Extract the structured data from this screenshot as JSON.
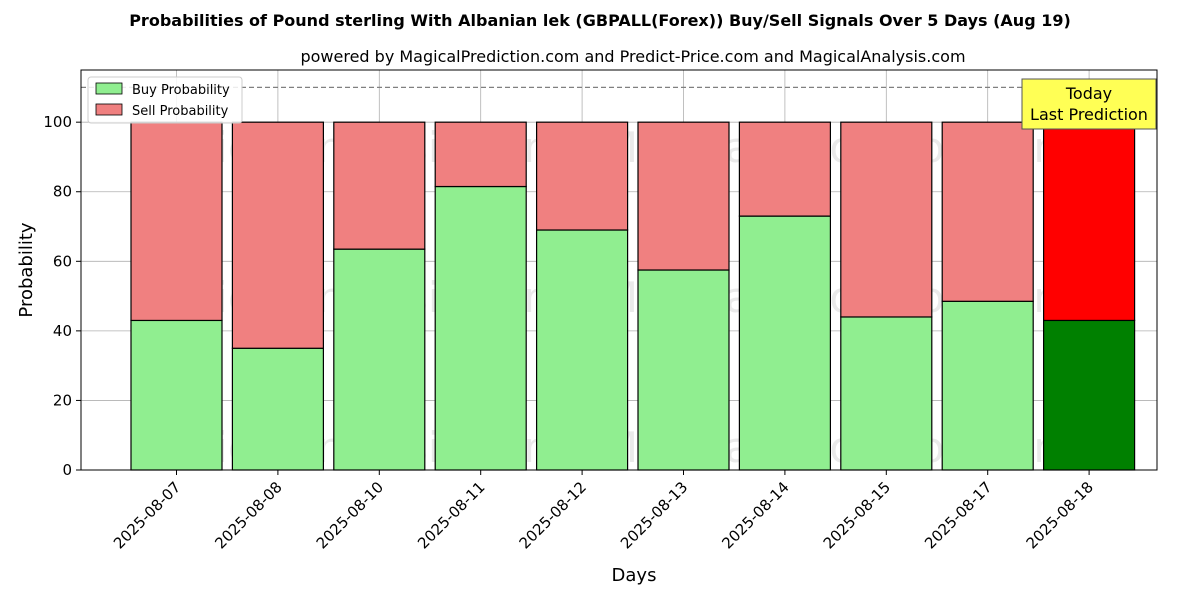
{
  "chart_data": {
    "type": "bar",
    "stacked": true,
    "title": "Probabilities of Pound sterling With Albanian lek (GBPALL(Forex)) Buy/Sell Signals Over 5 Days (Aug 19)",
    "subtitle": "powered by MagicalPrediction.com and Predict-Price.com and MagicalAnalysis.com",
    "xlabel": "Days",
    "ylabel": "Probability",
    "ylim": [
      0,
      115
    ],
    "yticks": [
      0,
      20,
      40,
      60,
      80,
      100
    ],
    "grid": true,
    "reference_line": 110,
    "categories": [
      "2025-08-07",
      "2025-08-08",
      "2025-08-10",
      "2025-08-11",
      "2025-08-12",
      "2025-08-13",
      "2025-08-14",
      "2025-08-15",
      "2025-08-17",
      "2025-08-18"
    ],
    "series": [
      {
        "name": "Buy Probability",
        "values": [
          43,
          35,
          63.5,
          81.5,
          69,
          57.5,
          73,
          44,
          48.5,
          43
        ],
        "color": "#90ee90",
        "highlight_color": "#008000"
      },
      {
        "name": "Sell Probability",
        "values": [
          57,
          65,
          36.5,
          18.5,
          31,
          42.5,
          27,
          56,
          51.5,
          57
        ],
        "color": "#f08080",
        "highlight_color": "#ff0000"
      }
    ],
    "highlight_index": 9,
    "legend_position": "top-left",
    "annotation": {
      "lines": [
        "Today",
        "Last Prediction"
      ],
      "background": "#ffff55"
    },
    "watermarks": [
      "MagicalAnalysis.com",
      "MagicalPrediction.com"
    ]
  }
}
